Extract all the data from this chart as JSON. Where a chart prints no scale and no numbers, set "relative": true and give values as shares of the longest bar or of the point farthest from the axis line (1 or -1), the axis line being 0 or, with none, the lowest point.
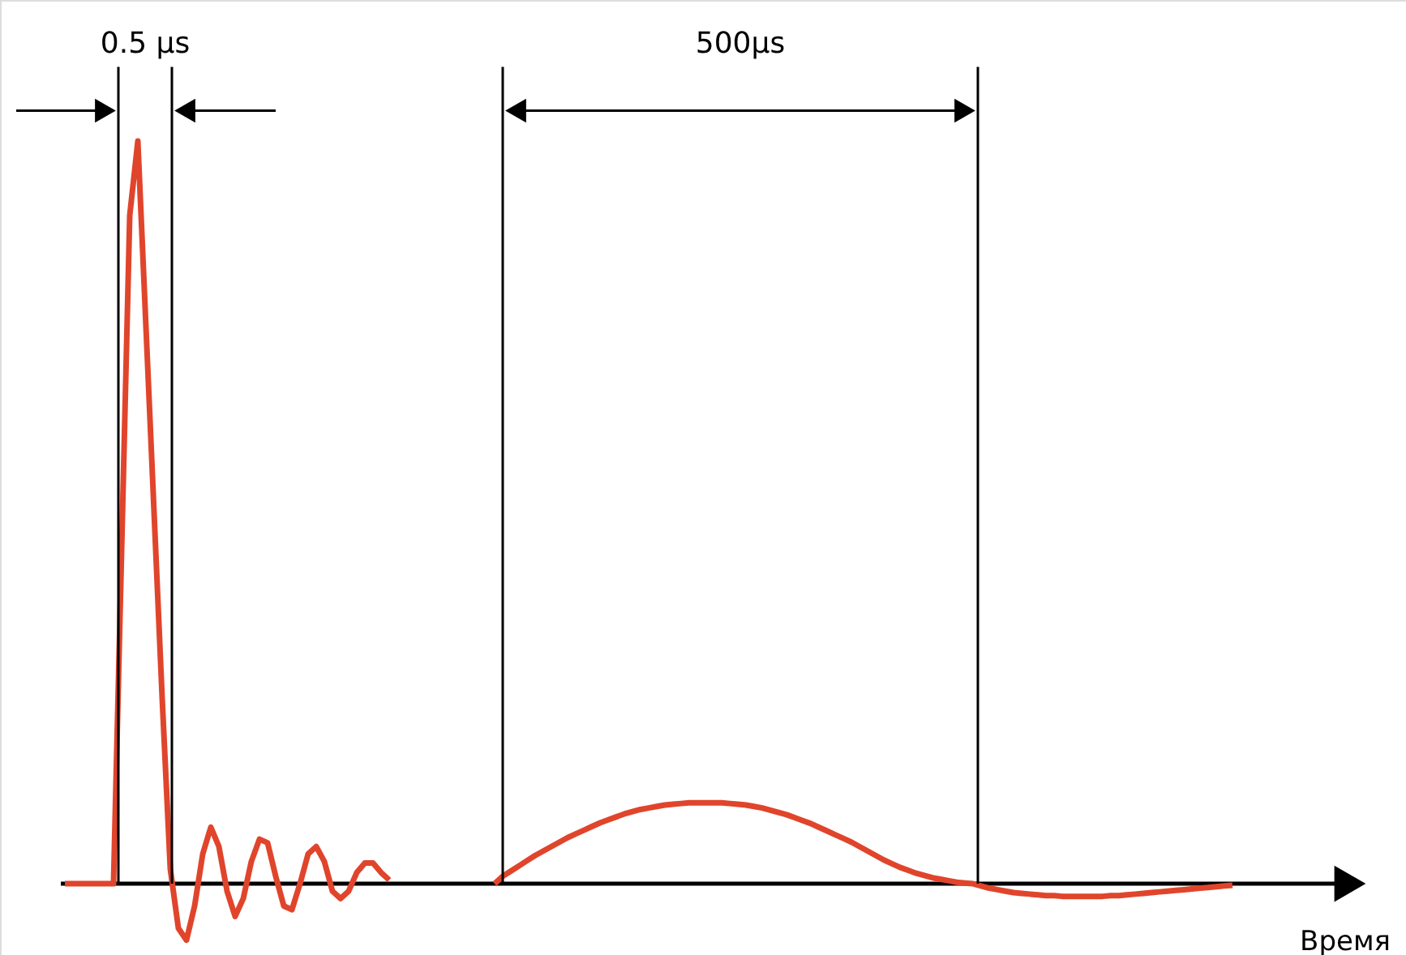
{
  "chart_data": {
    "type": "line",
    "relative": true,
    "xlabel": "Время",
    "annotations": [
      "0.5 µs",
      "500µs"
    ],
    "marker": "none",
    "line_style": "solid",
    "categories": [
      null,
      null,
      null,
      null,
      null,
      null,
      null,
      null,
      null,
      null,
      null,
      null,
      null,
      null,
      null,
      null,
      null,
      null,
      null,
      null,
      null,
      null,
      null,
      null,
      null,
      null,
      null,
      null,
      null,
      null,
      null,
      null,
      null,
      null,
      null,
      null,
      null,
      null,
      null,
      null,
      null,
      null,
      null,
      null,
      null,
      null,
      null,
      null,
      null,
      null,
      null,
      null,
      null,
      null,
      null,
      null,
      null,
      null,
      null,
      null,
      null,
      null,
      null,
      null,
      null,
      null,
      null,
      null,
      null,
      null,
      null,
      null,
      null,
      null,
      null,
      null,
      null,
      null,
      null,
      null,
      null,
      null,
      null,
      null,
      null,
      null,
      null,
      null,
      null,
      null,
      null,
      null,
      null,
      null,
      null,
      null,
      null,
      null,
      null,
      null,
      null,
      null,
      null,
      null,
      null,
      null,
      null,
      null,
      null,
      null,
      null,
      null,
      null,
      null,
      null,
      null,
      null,
      null,
      null,
      null,
      null,
      null,
      null,
      null,
      null,
      null,
      null,
      null,
      null,
      null,
      null,
      null,
      null,
      null,
      null,
      null,
      null,
      null,
      null,
      null,
      null,
      null,
      null,
      null,
      null
    ],
    "series": [
      {
        "color": "#e0452c",
        "values": [
          0,
          0,
          0,
          0,
          0,
          0,
          0,
          0.45,
          0.9,
          1.0,
          0.75,
          0.5,
          0.25,
          0.02,
          -0.06,
          -0.076,
          -0.03,
          0.04,
          0.076,
          0.05,
          -0.01,
          -0.044,
          -0.02,
          0.03,
          0.06,
          0.055,
          0.01,
          -0.03,
          -0.035,
          0,
          0.04,
          0.05,
          0.03,
          -0.01,
          -0.02,
          -0.01,
          0.015,
          0.028,
          0.028,
          0.015,
          0.005,
          null,
          null,
          null,
          null,
          null,
          null,
          null,
          null,
          null,
          null,
          null,
          null,
          null,
          null,
          null,
          null,
          null,
          null,
          null,
          null,
          null,
          null,
          null,
          null,
          null,
          null,
          null,
          null,
          null,
          null,
          null,
          null,
          null,
          null,
          null,
          null,
          null,
          null,
          null,
          null,
          null,
          null,
          null,
          null,
          null,
          null,
          null,
          null,
          null,
          null,
          null,
          null,
          null,
          null,
          null,
          null,
          null,
          null,
          null,
          null,
          null,
          null,
          null,
          null,
          null,
          null,
          null,
          null,
          null,
          null,
          null,
          null,
          null,
          null,
          null,
          null,
          null,
          null,
          null,
          null,
          null,
          null,
          null,
          null,
          null,
          null,
          null,
          null,
          null,
          null,
          null,
          null,
          null,
          null,
          null,
          null,
          null,
          null,
          null,
          null,
          null,
          null,
          null,
          null
        ]
      },
      {
        "color": "#e0452c",
        "values": [
          null,
          null,
          null,
          null,
          null,
          null,
          null,
          null,
          null,
          null,
          null,
          null,
          null,
          null,
          null,
          null,
          null,
          null,
          null,
          null,
          null,
          null,
          null,
          null,
          null,
          null,
          null,
          null,
          null,
          null,
          null,
          null,
          null,
          null,
          null,
          null,
          null,
          null,
          null,
          null,
          null,
          null,
          null,
          null,
          null,
          null,
          null,
          null,
          null,
          null,
          null,
          null,
          null,
          0.0,
          0.01,
          0.017,
          0.024,
          0.031,
          0.038,
          0.044,
          0.05,
          0.056,
          0.062,
          0.067,
          0.072,
          0.077,
          0.082,
          0.086,
          0.09,
          0.094,
          0.097,
          0.1,
          0.102,
          0.104,
          0.106,
          0.107,
          0.108,
          0.109,
          0.109,
          0.109,
          0.109,
          0.109,
          0.108,
          0.107,
          0.106,
          0.104,
          0.102,
          0.099,
          0.096,
          0.093,
          0.089,
          0.085,
          0.081,
          0.076,
          0.071,
          0.066,
          0.061,
          0.056,
          0.05,
          0.044,
          0.038,
          0.032,
          0.027,
          0.022,
          0.018,
          0.014,
          0.011,
          0.008,
          0.006,
          0.004,
          0.002,
          0.001,
          0.0,
          -0.003,
          -0.006,
          -0.008,
          -0.01,
          -0.012,
          -0.013,
          -0.014,
          -0.015,
          -0.016,
          -0.016,
          -0.017,
          -0.017,
          -0.017,
          -0.017,
          -0.017,
          -0.017,
          -0.016,
          -0.016,
          -0.015,
          -0.014,
          -0.013,
          -0.012,
          -0.011,
          -0.01,
          -0.009,
          -0.008,
          -0.007,
          -0.006,
          -0.005,
          -0.004,
          -0.003,
          -0.002
        ]
      }
    ]
  }
}
